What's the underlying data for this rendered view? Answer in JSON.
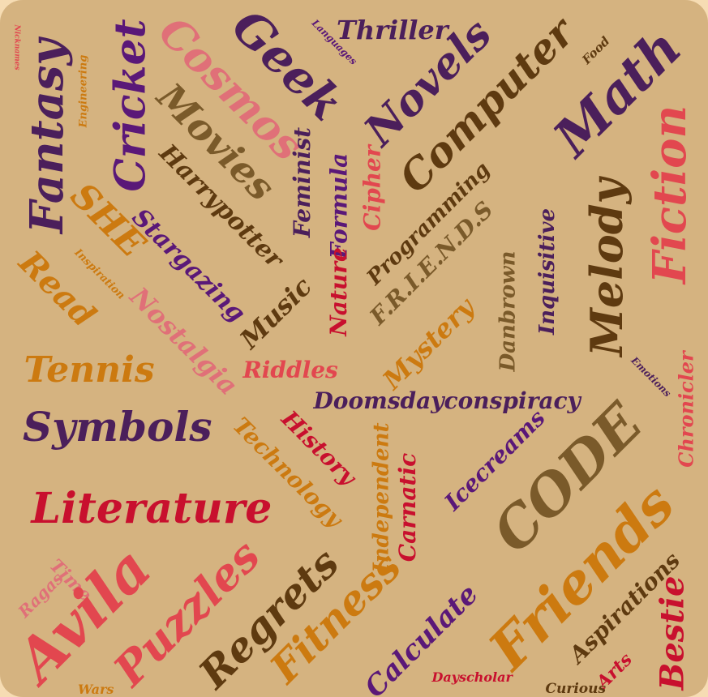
{
  "colors": {
    "background": "#d5b380",
    "page": "#f6dcb3",
    "purple": "#4b1f5b",
    "violet": "#5a1878",
    "red": "#c8102e",
    "coral": "#e2474f",
    "pink": "#e07078",
    "orange": "#cc7a10",
    "brown": "#5e3a10",
    "olive": "#7a5a2a"
  },
  "words": [
    {
      "text": "Nicknames",
      "color": "#e2474f"
    },
    {
      "text": "Fantasy",
      "color": "#4b1f5b"
    },
    {
      "text": "Engineering",
      "color": "#cc7a10"
    },
    {
      "text": "Cricket",
      "color": "#5a1878"
    },
    {
      "text": "Cosmos",
      "color": "#e07078"
    },
    {
      "text": "Languages",
      "color": "#5a1878"
    },
    {
      "text": "Geek",
      "color": "#4b1f5b"
    },
    {
      "text": "Thriller",
      "color": "#4b1f5b"
    },
    {
      "text": "Novels",
      "color": "#4b1f5b"
    },
    {
      "text": "Computer",
      "color": "#5e3a10"
    },
    {
      "text": "Food",
      "color": "#5e3a10"
    },
    {
      "text": "Math",
      "color": "#4b1f5b"
    },
    {
      "text": "Fiction",
      "color": "#e2474f"
    },
    {
      "text": "Movies",
      "color": "#7a5a2a"
    },
    {
      "text": "Harrypotter",
      "color": "#5e3a10"
    },
    {
      "text": "Feminist",
      "color": "#4b1f5b"
    },
    {
      "text": "Formula",
      "color": "#5a1878"
    },
    {
      "text": "Cipher",
      "color": "#e2474f"
    },
    {
      "text": "Programming",
      "color": "#5e3a10"
    },
    {
      "text": "F.R.I.E.N.D.S",
      "color": "#7a5a2a"
    },
    {
      "text": "Inquisitive",
      "color": "#4b1f5b"
    },
    {
      "text": "Melody",
      "color": "#5e3a10"
    },
    {
      "text": "SHE",
      "color": "#cc7a10"
    },
    {
      "text": "Stargazing",
      "color": "#5a1878"
    },
    {
      "text": "Inspiration",
      "color": "#cc7a10"
    },
    {
      "text": "Read",
      "color": "#cc7a10"
    },
    {
      "text": "Nostalgia",
      "color": "#e07078"
    },
    {
      "text": "Music",
      "color": "#5e3a10"
    },
    {
      "text": "Nature",
      "color": "#c8102e"
    },
    {
      "text": "Mystery",
      "color": "#cc7a10"
    },
    {
      "text": "Danbrown",
      "color": "#7a5a2a"
    },
    {
      "text": "Tennis",
      "color": "#cc7a10"
    },
    {
      "text": "Riddles",
      "color": "#e2474f"
    },
    {
      "text": "Emotions",
      "color": "#4b1f5b"
    },
    {
      "text": "Chronicler",
      "color": "#e2474f"
    },
    {
      "text": "Symbols",
      "color": "#4b1f5b"
    },
    {
      "text": "Doomsdayconspiracy",
      "color": "#4b1f5b"
    },
    {
      "text": "CODE",
      "color": "#7a5a2a"
    },
    {
      "text": "History",
      "color": "#c8102e"
    },
    {
      "text": "Technology",
      "color": "#cc7a10"
    },
    {
      "text": "Independent",
      "color": "#cc7a10"
    },
    {
      "text": "Carnatic",
      "color": "#c8102e"
    },
    {
      "text": "Icecreams",
      "color": "#5a1878"
    },
    {
      "text": "Literature",
      "color": "#c8102e"
    },
    {
      "text": "Friends",
      "color": "#cc7a10"
    },
    {
      "text": "Time",
      "color": "#e07078"
    },
    {
      "text": "Ragas",
      "color": "#e07078"
    },
    {
      "text": "Avila",
      "color": "#e2474f"
    },
    {
      "text": "Puzzles",
      "color": "#e2474f"
    },
    {
      "text": "Regrets",
      "color": "#5e3a10"
    },
    {
      "text": "Fitness",
      "color": "#cc7a10"
    },
    {
      "text": "Calculate",
      "color": "#5a1878"
    },
    {
      "text": "Aspirations",
      "color": "#5e3a10"
    },
    {
      "text": "Bestie",
      "color": "#c8102e"
    },
    {
      "text": "Arts",
      "color": "#c8102e"
    },
    {
      "text": "Dayscholar",
      "color": "#c8102e"
    },
    {
      "text": "Curious",
      "color": "#5e3a10"
    },
    {
      "text": "Wars",
      "color": "#cc7a10"
    }
  ]
}
